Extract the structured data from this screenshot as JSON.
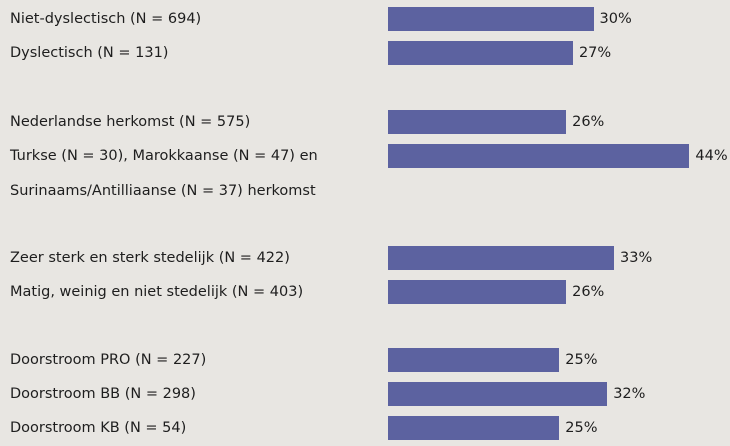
{
  "chart_data": {
    "type": "bar",
    "orientation": "horizontal",
    "color": "#5c62a0",
    "groups": [
      {
        "categories": [
          "Niet-dyslectisch (N = 694)",
          "Dyslectisch (N = 131)"
        ],
        "values": [
          30,
          27
        ],
        "value_labels": [
          "30%",
          "27%"
        ]
      },
      {
        "categories": [
          "Nederlandse herkomst (N = 575)",
          "Turkse (N = 30), Marokkaanse (N = 47) en Surinaams/Antilliaanse (N = 37) herkomst"
        ],
        "values": [
          26,
          44
        ],
        "value_labels": [
          "26%",
          "44%"
        ]
      },
      {
        "categories": [
          "Zeer sterk en sterk stedelijk (N = 422)",
          "Matig, weinig en niet stedelijk (N = 403)"
        ],
        "values": [
          33,
          26
        ],
        "value_labels": [
          "33%",
          "26%"
        ]
      },
      {
        "categories": [
          "Doorstroom PRO (N = 227)",
          "Doorstroom BB (N = 298)",
          "Doorstroom KB (N = 54)"
        ],
        "values": [
          25,
          32,
          25
        ],
        "value_labels": [
          "25%",
          "32%",
          "25%"
        ]
      }
    ]
  }
}
